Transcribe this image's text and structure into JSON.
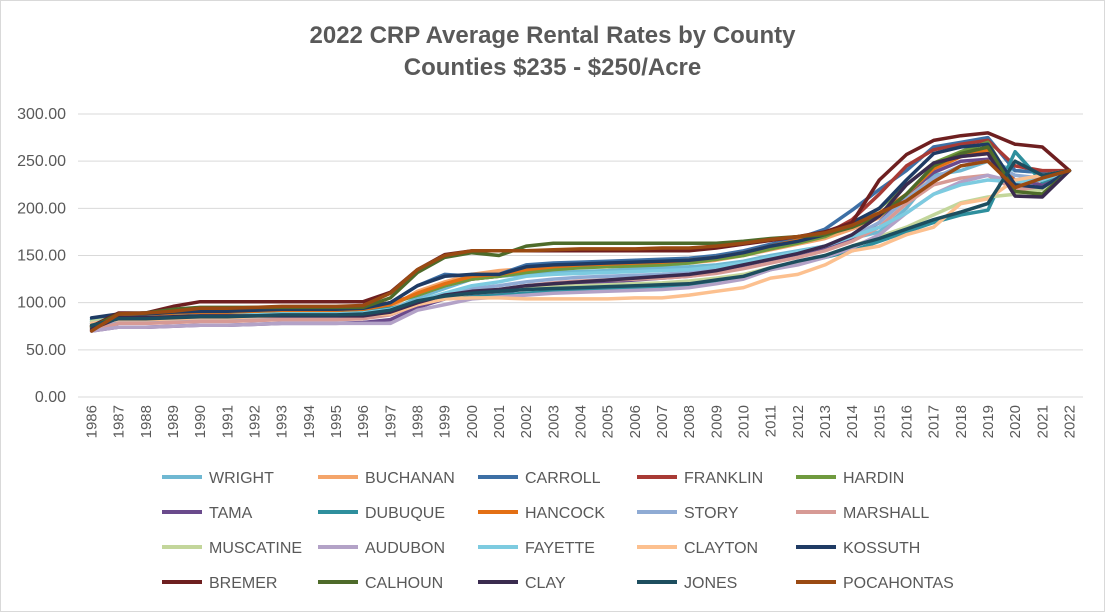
{
  "chart_data": {
    "type": "line",
    "title": "2022 CRP Average Rental Rates by County",
    "subtitle": "Counties $235 - $250/Acre",
    "xlabel": "",
    "ylabel": "",
    "ylim": [
      0,
      300
    ],
    "yticks": [
      "0.00",
      "50.00",
      "100.00",
      "150.00",
      "200.00",
      "250.00",
      "300.00"
    ],
    "grid": true,
    "legend_position": "bottom",
    "x": [
      "1986",
      "1987",
      "1988",
      "1989",
      "1990",
      "1991",
      "1992",
      "1993",
      "1994",
      "1995",
      "1996",
      "1997",
      "1998",
      "1999",
      "2000",
      "2001",
      "2002",
      "2003",
      "2004",
      "2005",
      "2006",
      "2007",
      "2008",
      "2009",
      "2010",
      "2011",
      "2012",
      "2013",
      "2014",
      "2015",
      "2016",
      "2017",
      "2018",
      "2019",
      "2020",
      "2021",
      "2022"
    ],
    "series": [
      {
        "name": "WRIGHT",
        "color": "#6fb8d2",
        "values": [
          80,
          86,
          86,
          87,
          88,
          88,
          88,
          89,
          89,
          89,
          89,
          92,
          105,
          115,
          125,
          128,
          130,
          132,
          133,
          134,
          136,
          137,
          138,
          140,
          144,
          150,
          155,
          160,
          168,
          175,
          200,
          235,
          240,
          250,
          240,
          238,
          240
        ]
      },
      {
        "name": "BUCHANAN",
        "color": "#f4a56b",
        "values": [
          72,
          84,
          85,
          86,
          87,
          87,
          88,
          89,
          89,
          89,
          90,
          95,
          112,
          122,
          130,
          134,
          136,
          137,
          138,
          139,
          140,
          141,
          142,
          145,
          150,
          156,
          162,
          168,
          178,
          190,
          210,
          240,
          255,
          258,
          226,
          230,
          240
        ]
      },
      {
        "name": "CARROLL",
        "color": "#3d6fa5",
        "values": [
          78,
          88,
          89,
          90,
          92,
          92,
          93,
          94,
          94,
          94,
          95,
          100,
          118,
          130,
          128,
          130,
          140,
          142,
          143,
          144,
          145,
          146,
          147,
          150,
          155,
          162,
          168,
          178,
          198,
          220,
          240,
          265,
          270,
          275,
          240,
          238,
          240
        ]
      },
      {
        "name": "FRANKLIN",
        "color": "#a83a35",
        "values": [
          76,
          88,
          89,
          90,
          92,
          92,
          93,
          94,
          94,
          94,
          95,
          100,
          108,
          118,
          125,
          128,
          133,
          136,
          138,
          139,
          140,
          141,
          143,
          146,
          152,
          158,
          164,
          172,
          188,
          215,
          245,
          262,
          268,
          272,
          245,
          240,
          240
        ]
      },
      {
        "name": "HARDIN",
        "color": "#6f9a3e",
        "values": [
          75,
          87,
          88,
          90,
          91,
          91,
          92,
          93,
          93,
          93,
          94,
          99,
          108,
          118,
          125,
          128,
          132,
          135,
          137,
          138,
          139,
          140,
          142,
          146,
          150,
          157,
          163,
          170,
          183,
          200,
          225,
          248,
          260,
          270,
          222,
          215,
          240
        ]
      },
      {
        "name": "TAMA",
        "color": "#6a4a8c",
        "values": [
          70,
          74,
          74,
          75,
          76,
          76,
          77,
          78,
          78,
          78,
          79,
          82,
          95,
          104,
          108,
          110,
          115,
          118,
          120,
          122,
          124,
          126,
          128,
          132,
          138,
          145,
          150,
          158,
          168,
          185,
          215,
          238,
          250,
          252,
          230,
          225,
          240
        ]
      },
      {
        "name": "DUBUQUE",
        "color": "#2e8f9d",
        "values": [
          82,
          86,
          86,
          87,
          88,
          88,
          89,
          90,
          90,
          90,
          91,
          94,
          100,
          104,
          106,
          108,
          110,
          112,
          113,
          114,
          115,
          116,
          118,
          122,
          126,
          135,
          142,
          148,
          155,
          165,
          175,
          185,
          193,
          198,
          260,
          228,
          240
        ]
      },
      {
        "name": "HANCOCK",
        "color": "#e36f14",
        "values": [
          74,
          86,
          87,
          89,
          90,
          90,
          91,
          92,
          92,
          92,
          93,
          98,
          110,
          120,
          128,
          130,
          135,
          138,
          140,
          141,
          142,
          143,
          145,
          148,
          153,
          160,
          166,
          174,
          185,
          195,
          215,
          242,
          255,
          262,
          228,
          232,
          240
        ]
      },
      {
        "name": "STORY",
        "color": "#8fabd4",
        "values": [
          73,
          80,
          80,
          81,
          82,
          82,
          83,
          84,
          84,
          84,
          85,
          90,
          102,
          110,
          115,
          118,
          122,
          125,
          127,
          128,
          129,
          130,
          132,
          136,
          140,
          146,
          152,
          160,
          170,
          185,
          210,
          232,
          245,
          250,
          235,
          232,
          240
        ]
      },
      {
        "name": "MARSHALL",
        "color": "#d79a95",
        "values": [
          71,
          78,
          78,
          79,
          80,
          80,
          81,
          82,
          82,
          82,
          83,
          87,
          98,
          106,
          112,
          114,
          118,
          121,
          123,
          124,
          125,
          126,
          128,
          131,
          136,
          142,
          148,
          155,
          165,
          180,
          205,
          225,
          232,
          235,
          220,
          222,
          240
        ]
      },
      {
        "name": "MUSCATINE",
        "color": "#c3d69b",
        "values": [
          80,
          84,
          84,
          85,
          86,
          86,
          87,
          88,
          88,
          88,
          89,
          92,
          100,
          106,
          110,
          112,
          115,
          117,
          118,
          119,
          120,
          121,
          123,
          126,
          130,
          137,
          143,
          150,
          160,
          170,
          180,
          193,
          206,
          212,
          215,
          220,
          240
        ]
      },
      {
        "name": "AUDUBON",
        "color": "#b3a2c7",
        "values": [
          70,
          74,
          74,
          75,
          76,
          76,
          77,
          78,
          78,
          78,
          78,
          78,
          92,
          98,
          104,
          106,
          108,
          110,
          111,
          112,
          113,
          114,
          116,
          120,
          125,
          135,
          140,
          148,
          158,
          172,
          195,
          215,
          228,
          235,
          228,
          230,
          240
        ]
      },
      {
        "name": "FAYETTE",
        "color": "#7dcbe0",
        "values": [
          78,
          84,
          84,
          85,
          86,
          86,
          87,
          88,
          88,
          88,
          89,
          93,
          102,
          110,
          118,
          122,
          128,
          130,
          131,
          132,
          133,
          134,
          135,
          138,
          142,
          148,
          154,
          160,
          170,
          180,
          195,
          215,
          225,
          230,
          228,
          230,
          240
        ]
      },
      {
        "name": "CLAYTON",
        "color": "#fcc08f",
        "values": [
          78,
          82,
          82,
          83,
          84,
          84,
          85,
          86,
          86,
          86,
          87,
          88,
          98,
          104,
          105,
          105,
          104,
          104,
          104,
          104,
          105,
          105,
          108,
          112,
          116,
          126,
          130,
          140,
          155,
          160,
          172,
          180,
          205,
          210,
          230,
          235,
          240
        ]
      },
      {
        "name": "KOSSUTH",
        "color": "#1f3b64",
        "values": [
          84,
          88,
          88,
          90,
          91,
          91,
          92,
          93,
          93,
          93,
          94,
          100,
          118,
          128,
          130,
          130,
          138,
          140,
          141,
          142,
          143,
          144,
          145,
          148,
          153,
          160,
          165,
          172,
          185,
          200,
          230,
          258,
          265,
          268,
          225,
          222,
          240
        ]
      },
      {
        "name": "BREMER",
        "color": "#6e1f20",
        "values": [
          75,
          89,
          89,
          96,
          101,
          101,
          101,
          101,
          101,
          101,
          101,
          111,
          135,
          151,
          155,
          155,
          155,
          155,
          155,
          155,
          155,
          155,
          155,
          158,
          162,
          166,
          170,
          175,
          185,
          230,
          257,
          272,
          277,
          280,
          268,
          265,
          240
        ]
      },
      {
        "name": "CALHOUN",
        "color": "#4e6b2a",
        "values": [
          74,
          88,
          89,
          93,
          95,
          95,
          95,
          95,
          95,
          95,
          95,
          105,
          132,
          148,
          153,
          150,
          160,
          163,
          163,
          163,
          163,
          163,
          163,
          163,
          165,
          168,
          170,
          172,
          180,
          192,
          215,
          245,
          258,
          265,
          218,
          215,
          240
        ]
      },
      {
        "name": "CLAY",
        "color": "#3a2b4f",
        "values": [
          72,
          84,
          84,
          85,
          86,
          86,
          86,
          86,
          86,
          86,
          86,
          90,
          100,
          108,
          112,
          114,
          118,
          120,
          122,
          124,
          126,
          128,
          130,
          134,
          140,
          146,
          152,
          160,
          172,
          192,
          225,
          248,
          255,
          258,
          213,
          212,
          240
        ]
      },
      {
        "name": "JONES",
        "color": "#1d4e5f",
        "values": [
          76,
          83,
          83,
          84,
          85,
          85,
          86,
          87,
          87,
          87,
          88,
          92,
          102,
          107,
          110,
          112,
          114,
          115,
          116,
          117,
          118,
          119,
          120,
          124,
          128,
          137,
          144,
          150,
          160,
          168,
          178,
          188,
          196,
          205,
          250,
          235,
          240
        ]
      },
      {
        "name": "POCAHONTAS",
        "color": "#9a4a12",
        "values": [
          70,
          88,
          89,
          91,
          94,
          94,
          95,
          96,
          96,
          96,
          97,
          110,
          135,
          150,
          155,
          155,
          155,
          156,
          157,
          157,
          157,
          158,
          158,
          160,
          163,
          167,
          170,
          174,
          182,
          195,
          208,
          228,
          245,
          250,
          222,
          232,
          240
        ]
      }
    ]
  }
}
